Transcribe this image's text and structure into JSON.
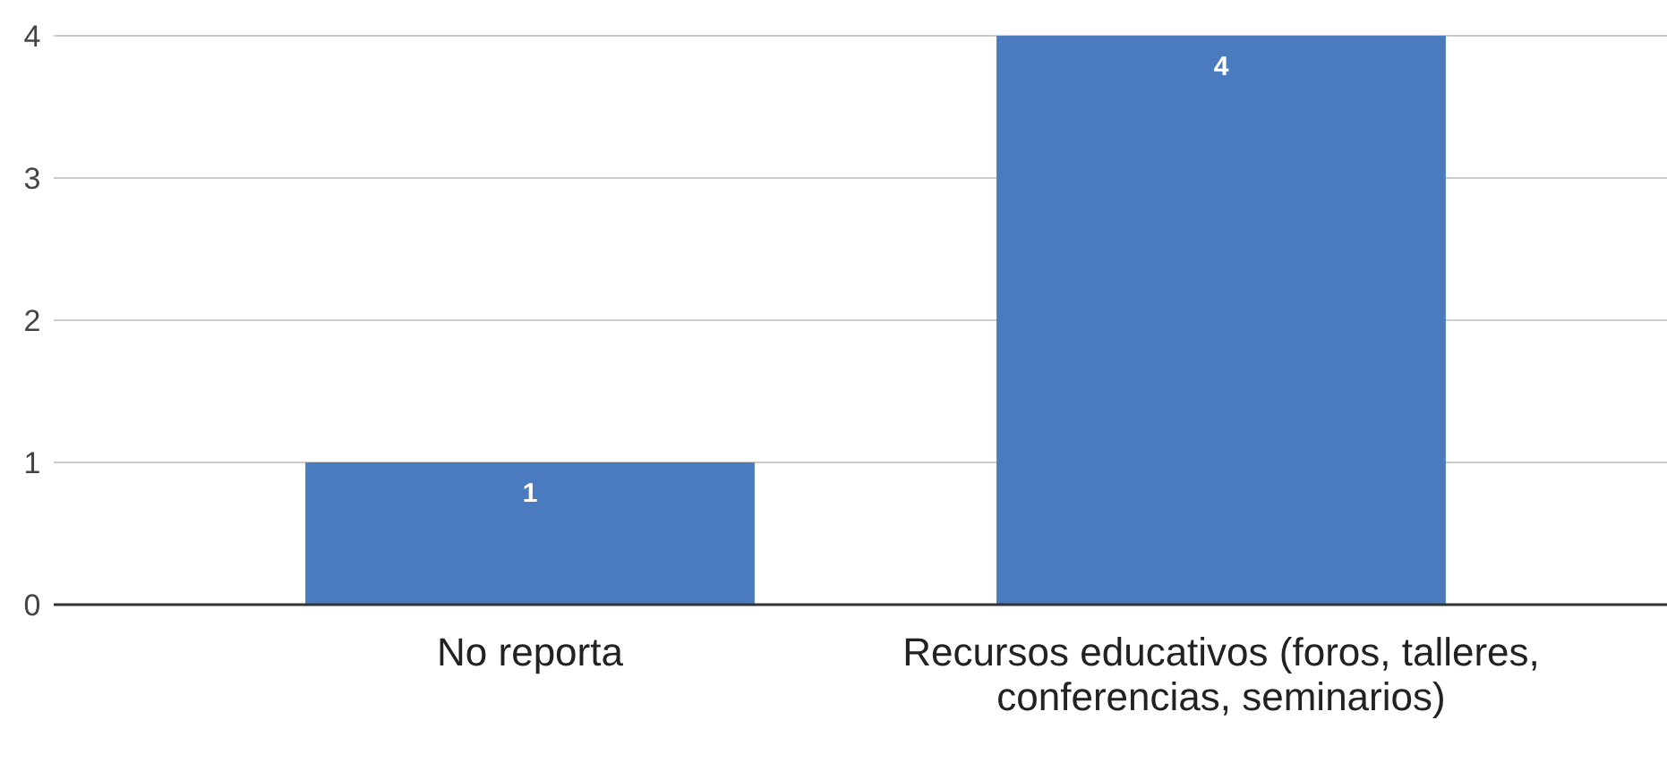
{
  "chart_data": {
    "type": "bar",
    "categories": [
      "No reporta",
      "Recursos educativos (foros, talleres, conferencias, seminarios)"
    ],
    "values": [
      1,
      4
    ],
    "color": "#4a7bbf",
    "ylim": [
      0,
      4
    ],
    "yticks": [
      0,
      1,
      2,
      3,
      4
    ],
    "grid": "y",
    "data_labels": true
  }
}
